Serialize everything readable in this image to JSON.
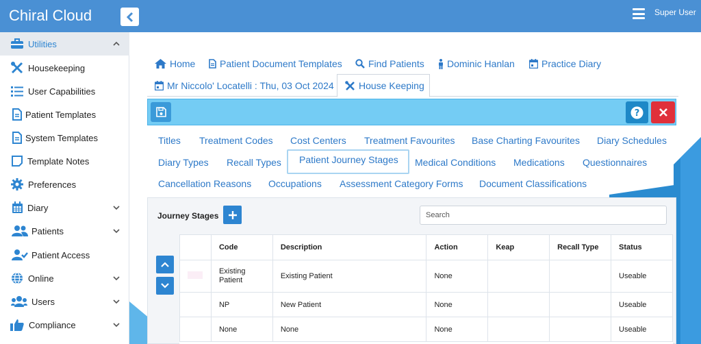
{
  "colors": {
    "header": "#4a90d4",
    "accent": "#2d85d1",
    "toolbar": "#74ccf4",
    "danger": "#e0303a"
  },
  "header": {
    "brand": "Chiral Cloud",
    "user": "Super User"
  },
  "sidebar": {
    "items": [
      {
        "label": "Utilities",
        "icon": "toolbox-icon",
        "expanded": true
      },
      {
        "label": "Housekeeping",
        "icon": "tools-icon"
      },
      {
        "label": "User Capabilities",
        "icon": "list-icon"
      },
      {
        "label": "Patient Templates",
        "icon": "document-icon"
      },
      {
        "label": "System Templates",
        "icon": "document-icon"
      },
      {
        "label": "Template Notes",
        "icon": "note-icon"
      },
      {
        "label": "Preferences",
        "icon": "gear-icon"
      },
      {
        "label": "Diary",
        "icon": "calendar-icon"
      },
      {
        "label": "Patients",
        "icon": "users-icon"
      },
      {
        "label": "Patient Access",
        "icon": "user-check-icon"
      },
      {
        "label": "Online",
        "icon": "globe-icon"
      },
      {
        "label": "Users",
        "icon": "users-icon"
      },
      {
        "label": "Compliance",
        "icon": "thumbs-up-icon"
      }
    ]
  },
  "tabs": [
    {
      "label": "Home",
      "icon": "home-icon"
    },
    {
      "label": "Patient Document Templates",
      "icon": "document-icon"
    },
    {
      "label": "Find Patients",
      "icon": "search-icon"
    },
    {
      "label": "Dominic Hanlan",
      "icon": "person-icon"
    },
    {
      "label": "Practice Diary",
      "icon": "calendar-icon"
    },
    {
      "label": "Mr Niccolo' Locatelli : Thu, 03 Oct 2024",
      "icon": "calendar-icon"
    },
    {
      "label": "House Keeping",
      "icon": "tools-icon",
      "active": true
    }
  ],
  "subtabs": [
    "Titles",
    "Treatment Codes",
    "Cost Centers",
    "Treatment Favourites",
    "Base Charting Favourites",
    "Diary Schedules",
    "Diary Types",
    "Recall Types",
    "Patient Journey Stages",
    "Medical Conditions",
    "Medications",
    "Questionnaires",
    "Cancellation Reasons",
    "Occupations",
    "Assessment Category Forms",
    "Document Classifications"
  ],
  "subtab_active": "Patient Journey Stages",
  "panel": {
    "title": "Journey Stages",
    "search_placeholder": "Search",
    "columns": [
      "",
      "Code",
      "Description",
      "Action",
      "Keap",
      "Recall Type",
      "Status"
    ],
    "rows": [
      {
        "code": "Existing\nPatient",
        "description": "Existing Patient",
        "action": "None",
        "keap": "",
        "recall_type": "",
        "status": "Useable"
      },
      {
        "code": "NP",
        "description": "New Patient",
        "action": "None",
        "keap": "",
        "recall_type": "",
        "status": "Useable"
      },
      {
        "code": "None",
        "description": "None",
        "action": "None",
        "keap": "",
        "recall_type": "",
        "status": "Useable"
      }
    ]
  }
}
